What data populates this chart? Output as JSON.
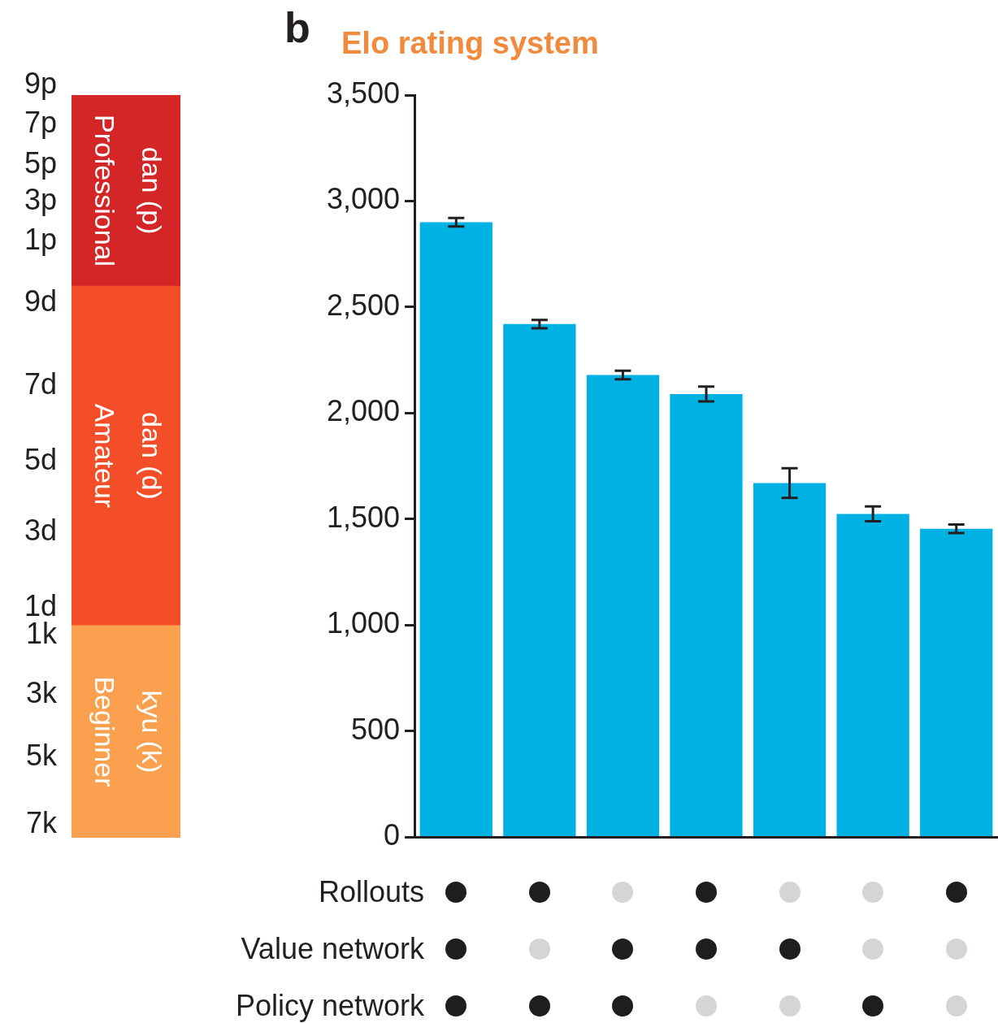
{
  "chart_data": [
    {
      "type": "bar",
      "stacked": true,
      "tick_labels": false,
      "categories": [
        null
      ],
      "ylim": [
        0,
        3500
      ],
      "series": [
        {
          "name": "Beginner kyu (k)",
          "color": "#fba04f",
          "values": [
            1000
          ]
        },
        {
          "name": "Amateur dan (d)",
          "color": "#f44e28",
          "values": [
            1600
          ]
        },
        {
          "name": "Professional dan (p)",
          "color": "#d42527",
          "values": [
            900
          ]
        }
      ],
      "annotations": [
        "7k",
        "5k",
        "3k",
        "1k",
        "1d",
        "3d",
        "5d",
        "7d",
        "9d",
        "1p",
        "3p",
        "5p",
        "7p",
        "9p"
      ],
      "legend": false
    },
    {
      "type": "bar",
      "title": "Elo rating system",
      "annotations": [
        "b",
        "Rollouts",
        "Value network",
        "Policy network"
      ],
      "categories": [
        null,
        null,
        null,
        null,
        null,
        null,
        null
      ],
      "values": [
        2900,
        2420,
        2180,
        2090,
        1670,
        1525,
        1455
      ],
      "errors": [
        20,
        20,
        20,
        35,
        70,
        35,
        20
      ],
      "color": "#00b2e3",
      "ylim": [
        0,
        3500
      ],
      "yticks": [
        {
          "value": 0,
          "label": "0"
        },
        {
          "value": 500,
          "label": "500"
        },
        {
          "value": 1000,
          "label": "1,000"
        },
        {
          "value": 1500,
          "label": "1,500"
        },
        {
          "value": 2000,
          "label": "2,000"
        },
        {
          "value": 2500,
          "label": "2,500"
        },
        {
          "value": 3000,
          "label": "3,000"
        },
        {
          "value": 3500,
          "label": "3,500"
        }
      ],
      "legend": false
    }
  ]
}
